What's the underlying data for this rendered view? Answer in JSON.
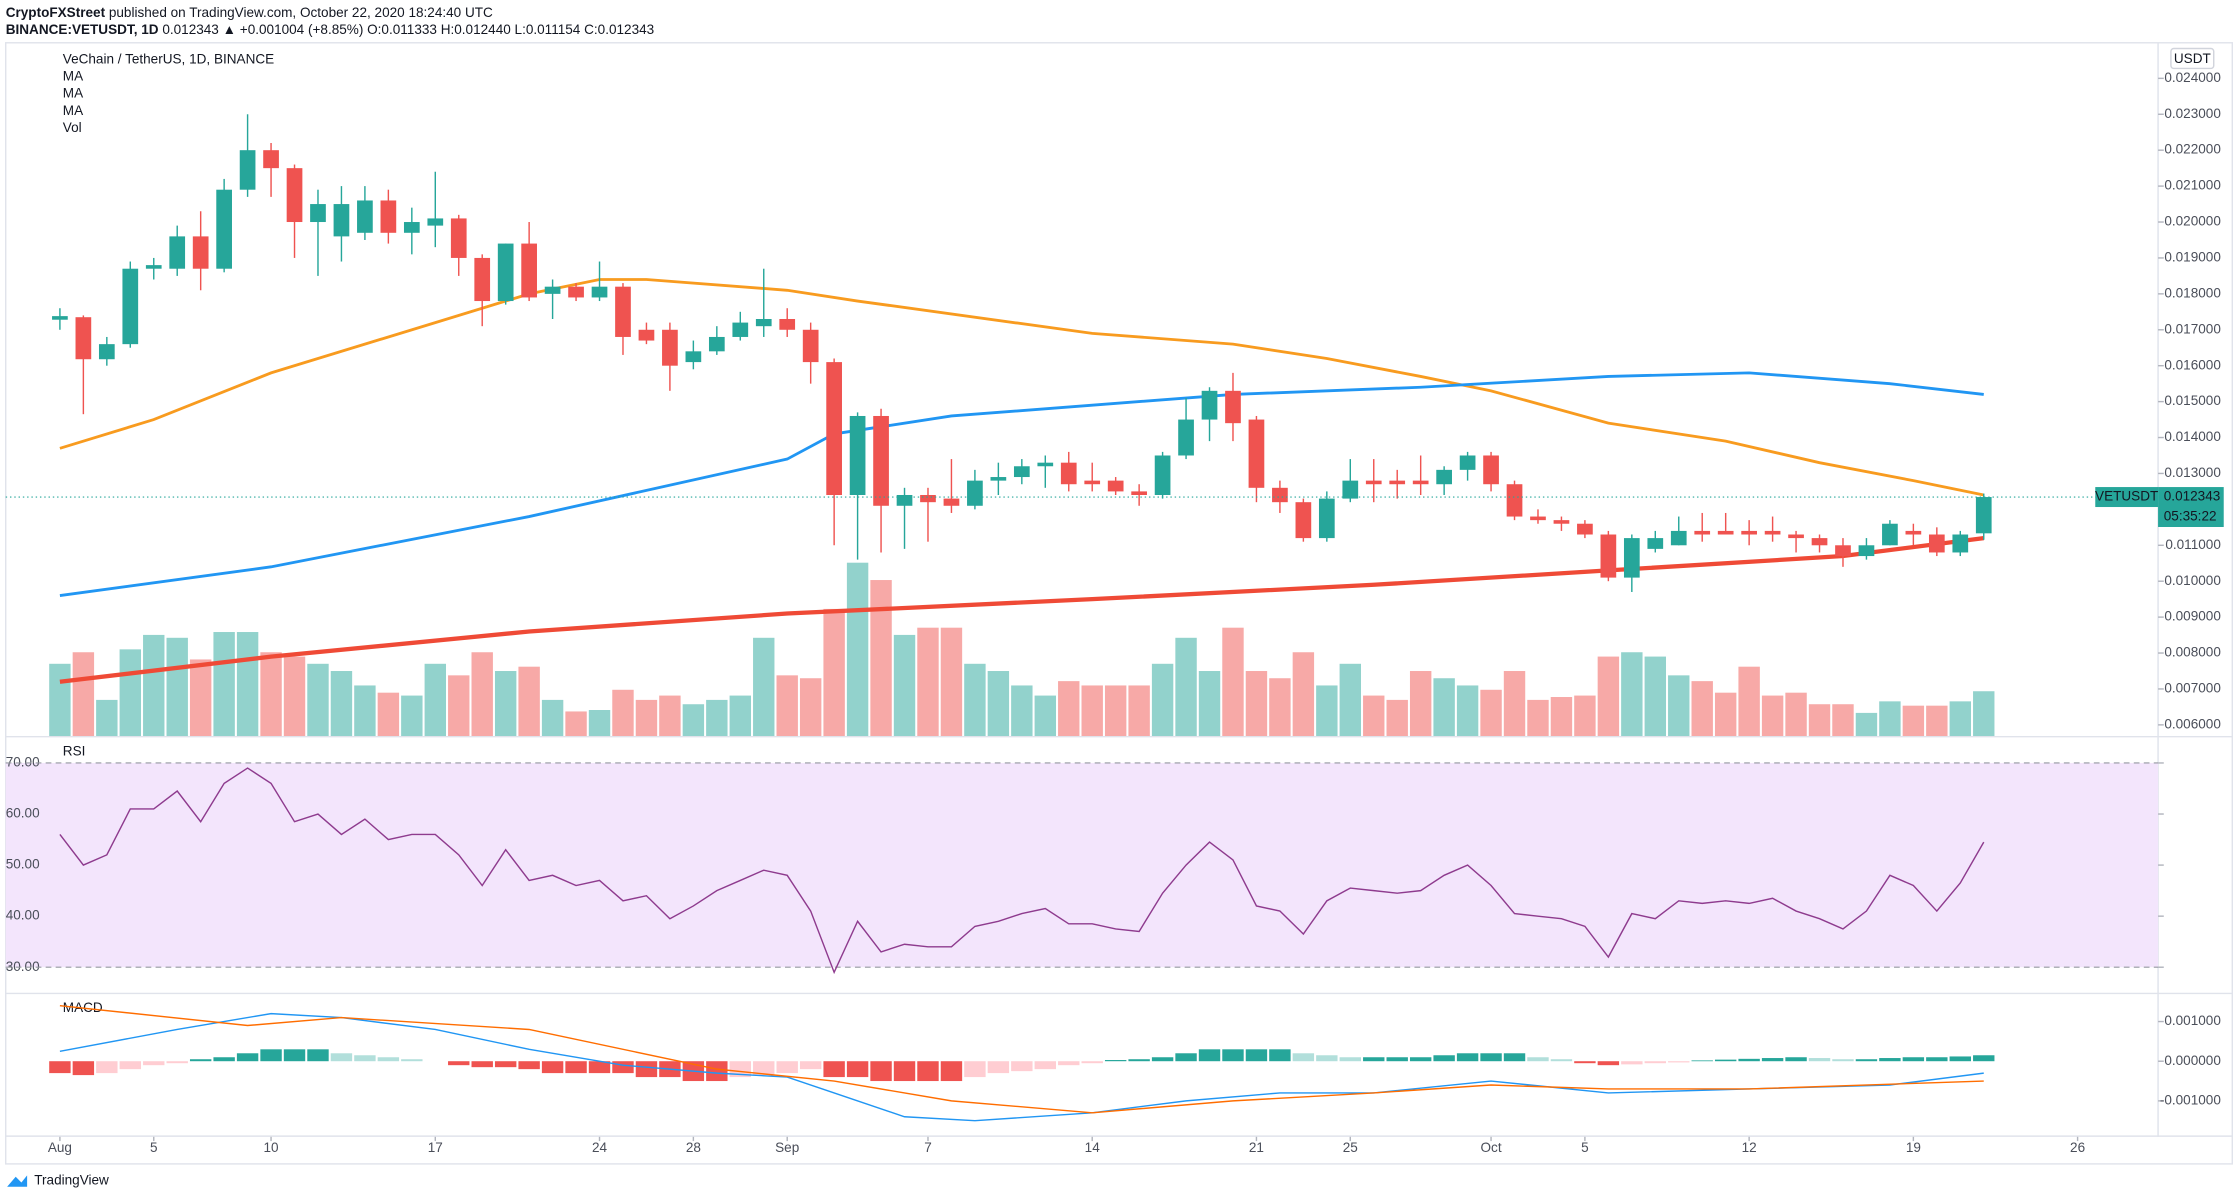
{
  "header": {
    "publisher": "CryptoFXStreet",
    "published": " published on TradingView.com, October 22, 2020 18:24:40 UTC",
    "symbol": "BINANCE:VETUSDT, 1D",
    "quote": " 0.012343 ▲ +0.001004 (+8.85%) O:0.011333 H:0.012440 L:0.011154 C:0.012343",
    "logo": "TradingView"
  },
  "chart_data": [
    {
      "type": "candlestick",
      "title": "VeChain / TetherUS, 1D, BINANCE",
      "axis_unit": "USDT",
      "symbol": "VETUSDT",
      "last_price": 0.012343,
      "countdown": "05:35:22",
      "up_color": "#26a69a",
      "down_color": "#ef5350",
      "volume_name": "Vol",
      "grid": false,
      "open": [
        0.01728,
        0.01735,
        0.01618,
        0.0166,
        0.0187,
        0.0187,
        0.0196,
        0.0187,
        0.0209,
        0.022,
        0.0215,
        0.02,
        0.0196,
        0.0197,
        0.0206,
        0.0197,
        0.0199,
        0.0201,
        0.019,
        0.0178,
        0.0194,
        0.018,
        0.0182,
        0.0179,
        0.0182,
        0.017,
        0.017,
        0.0161,
        0.0164,
        0.0168,
        0.0171,
        0.0173,
        0.017,
        0.0161,
        0.0124,
        0.0146,
        0.0121,
        0.0124,
        0.0123,
        0.0121,
        0.0128,
        0.0129,
        0.0132,
        0.0133,
        0.0128,
        0.0128,
        0.0125,
        0.0124,
        0.0135,
        0.0145,
        0.0153,
        0.0145,
        0.0126,
        0.0122,
        0.0112,
        0.0123,
        0.0128,
        0.0128,
        0.0128,
        0.0127,
        0.0131,
        0.0135,
        0.0127,
        0.0118,
        0.0117,
        0.0116,
        0.0113,
        0.0101,
        0.0109,
        0.011,
        0.0114,
        0.0114,
        0.0114,
        0.0114,
        0.0113,
        0.0112,
        0.011,
        0.0107,
        0.011,
        0.0114,
        0.0113,
        0.0108,
        0.011333
      ],
      "high": [
        0.0176,
        0.0174,
        0.0168,
        0.0189,
        0.019,
        0.0199,
        0.0203,
        0.0212,
        0.023,
        0.0222,
        0.0216,
        0.0209,
        0.021,
        0.021,
        0.0209,
        0.0204,
        0.0214,
        0.0202,
        0.0191,
        0.0194,
        0.02,
        0.0184,
        0.0183,
        0.0189,
        0.0183,
        0.0172,
        0.0172,
        0.0167,
        0.0171,
        0.0175,
        0.0187,
        0.0176,
        0.0172,
        0.0162,
        0.0147,
        0.0148,
        0.0126,
        0.0126,
        0.0134,
        0.0131,
        0.0133,
        0.0134,
        0.0135,
        0.0136,
        0.0133,
        0.0129,
        0.0127,
        0.0136,
        0.0151,
        0.0154,
        0.0158,
        0.0146,
        0.0128,
        0.0123,
        0.0125,
        0.0134,
        0.0134,
        0.0131,
        0.0135,
        0.0132,
        0.0136,
        0.0136,
        0.0128,
        0.012,
        0.0118,
        0.0117,
        0.0114,
        0.0113,
        0.0114,
        0.0118,
        0.0119,
        0.0119,
        0.0117,
        0.0118,
        0.0114,
        0.0113,
        0.0112,
        0.0112,
        0.0117,
        0.0116,
        0.0115,
        0.0114,
        0.01244
      ],
      "low": [
        0.017,
        0.01465,
        0.016,
        0.0165,
        0.0184,
        0.0185,
        0.0181,
        0.0186,
        0.0207,
        0.0207,
        0.019,
        0.0185,
        0.0189,
        0.0195,
        0.0194,
        0.0191,
        0.0193,
        0.0185,
        0.0171,
        0.0177,
        0.0178,
        0.0173,
        0.0178,
        0.0178,
        0.0163,
        0.0166,
        0.0153,
        0.0159,
        0.0163,
        0.0167,
        0.0168,
        0.0168,
        0.0155,
        0.011,
        0.0106,
        0.0108,
        0.0109,
        0.0111,
        0.0119,
        0.012,
        0.0124,
        0.0127,
        0.0126,
        0.0125,
        0.0125,
        0.0124,
        0.0121,
        0.0123,
        0.0134,
        0.0139,
        0.0139,
        0.0122,
        0.0119,
        0.0111,
        0.0111,
        0.0122,
        0.0122,
        0.0123,
        0.0124,
        0.0124,
        0.0128,
        0.0125,
        0.0117,
        0.0116,
        0.0114,
        0.0112,
        0.01,
        0.0097,
        0.0108,
        0.011,
        0.0111,
        0.0113,
        0.011,
        0.0111,
        0.0108,
        0.0108,
        0.0104,
        0.0106,
        0.011,
        0.011,
        0.0107,
        0.0107,
        0.011154
      ],
      "close": [
        0.01738,
        0.01618,
        0.0166,
        0.0187,
        0.0188,
        0.0196,
        0.0187,
        0.0209,
        0.022,
        0.0215,
        0.02,
        0.0205,
        0.0205,
        0.0206,
        0.0197,
        0.02,
        0.0201,
        0.019,
        0.0178,
        0.0194,
        0.0179,
        0.0182,
        0.0179,
        0.0182,
        0.0168,
        0.0167,
        0.016,
        0.0164,
        0.0168,
        0.0172,
        0.0173,
        0.017,
        0.0161,
        0.0124,
        0.0146,
        0.0121,
        0.0124,
        0.0122,
        0.0121,
        0.0128,
        0.0129,
        0.0132,
        0.0133,
        0.0127,
        0.0127,
        0.0125,
        0.0124,
        0.0135,
        0.0145,
        0.0153,
        0.0144,
        0.0126,
        0.0122,
        0.0112,
        0.0123,
        0.0128,
        0.0127,
        0.0127,
        0.0127,
        0.0131,
        0.0135,
        0.0127,
        0.0118,
        0.0117,
        0.0116,
        0.0113,
        0.0101,
        0.0112,
        0.0112,
        0.0114,
        0.0113,
        0.0113,
        0.0113,
        0.0113,
        0.0112,
        0.011,
        0.0107,
        0.011,
        0.0116,
        0.0113,
        0.0108,
        0.0113,
        0.012343
      ],
      "volume": [
        50,
        58,
        25,
        60,
        70,
        68,
        53,
        72,
        72,
        58,
        55,
        50,
        45,
        35,
        30,
        28,
        50,
        42,
        58,
        45,
        48,
        25,
        17,
        18,
        32,
        25,
        28,
        22,
        25,
        28,
        68,
        42,
        40,
        88,
        120,
        108,
        70,
        75,
        75,
        50,
        45,
        35,
        28,
        38,
        35,
        35,
        35,
        50,
        68,
        45,
        75,
        45,
        40,
        58,
        35,
        50,
        28,
        25,
        45,
        40,
        35,
        32,
        45,
        25,
        27,
        28,
        55,
        58,
        55,
        42,
        38,
        30,
        48,
        28,
        30,
        22,
        22,
        16,
        24,
        21,
        21,
        24,
        31
      ],
      "series": [
        {
          "name": "MA",
          "color": "#f89b1f",
          "width": 2,
          "x": [
            0,
            4,
            9,
            16,
            20,
            23,
            25,
            31,
            34,
            44,
            50,
            54,
            58,
            61,
            66,
            71,
            75,
            79,
            82
          ],
          "values": [
            0.0137,
            0.0145,
            0.0158,
            0.0172,
            0.018,
            0.0184,
            0.0184,
            0.0181,
            0.0178,
            0.0169,
            0.0166,
            0.0162,
            0.0157,
            0.0153,
            0.0144,
            0.0139,
            0.0133,
            0.0128,
            0.0124
          ]
        },
        {
          "name": "MA",
          "color": "#2196f3",
          "width": 2,
          "x": [
            0,
            9,
            20,
            31,
            33,
            38,
            44,
            50,
            58,
            66,
            72,
            78,
            82
          ],
          "values": [
            0.0096,
            0.0104,
            0.0118,
            0.0134,
            0.0141,
            0.0146,
            0.0149,
            0.0152,
            0.0154,
            0.0157,
            0.0158,
            0.0155,
            0.0152
          ]
        },
        {
          "name": "MA",
          "color": "#ef4a36",
          "width": 3,
          "x": [
            0,
            9,
            20,
            31,
            44,
            56,
            66,
            76,
            82
          ],
          "values": [
            0.0072,
            0.0079,
            0.0086,
            0.0091,
            0.0095,
            0.0099,
            0.0103,
            0.0107,
            0.0112
          ]
        }
      ],
      "xlim": [
        -2.31,
        89.43
      ],
      "xticks": [
        {
          "value": 0,
          "label": "Aug"
        },
        {
          "value": 4,
          "label": "5"
        },
        {
          "value": 9,
          "label": "10"
        },
        {
          "value": 16,
          "label": "17"
        },
        {
          "value": 23,
          "label": "24"
        },
        {
          "value": 27,
          "label": "28"
        },
        {
          "value": 31,
          "label": "Sep"
        },
        {
          "value": 37,
          "label": "7"
        },
        {
          "value": 44,
          "label": "14"
        },
        {
          "value": 51,
          "label": "21"
        },
        {
          "value": 55,
          "label": "25"
        },
        {
          "value": 61,
          "label": "Oct"
        },
        {
          "value": 65,
          "label": "5"
        },
        {
          "value": 72,
          "label": "12"
        },
        {
          "value": 79,
          "label": "19"
        },
        {
          "value": 86,
          "label": "26"
        }
      ],
      "ylim": [
        0.00569,
        0.02499
      ],
      "yticks": [
        {
          "value": 0.006,
          "label": "0.006000"
        },
        {
          "value": 0.007,
          "label": "0.007000"
        },
        {
          "value": 0.008,
          "label": "0.008000"
        },
        {
          "value": 0.009,
          "label": "0.009000"
        },
        {
          "value": 0.01,
          "label": "0.010000"
        },
        {
          "value": 0.011,
          "label": "0.011000"
        },
        {
          "value": 0.012,
          "label": "0.012000"
        },
        {
          "value": 0.013,
          "label": "0.013000"
        },
        {
          "value": 0.014,
          "label": "0.014000"
        },
        {
          "value": 0.015,
          "label": "0.015000"
        },
        {
          "value": 0.016,
          "label": "0.016000"
        },
        {
          "value": 0.017,
          "label": "0.017000"
        },
        {
          "value": 0.018,
          "label": "0.018000"
        },
        {
          "value": 0.019,
          "label": "0.019000"
        },
        {
          "value": 0.02,
          "label": "0.020000"
        },
        {
          "value": 0.021,
          "label": "0.021000"
        },
        {
          "value": 0.022,
          "label": "0.022000"
        },
        {
          "value": 0.023,
          "label": "0.023000"
        },
        {
          "value": 0.024,
          "label": "0.024000"
        }
      ]
    },
    {
      "type": "line",
      "title": "RSI",
      "color": "#8e3b8e",
      "band_color": "#f3e5fc",
      "values": [
        56,
        50,
        52,
        61,
        61,
        64.5,
        58.5,
        66,
        69,
        66,
        58.5,
        60,
        56,
        59,
        55,
        56,
        56,
        52,
        46,
        53,
        47,
        48,
        46,
        47,
        43,
        44,
        39.5,
        42,
        45,
        47,
        49,
        48,
        41,
        29,
        39,
        33,
        34.5,
        34,
        34,
        38,
        39,
        40.5,
        41.5,
        38.5,
        38.5,
        37.5,
        37,
        44.5,
        50,
        54.5,
        51,
        42,
        41,
        36.5,
        43,
        45.5,
        45,
        44.5,
        45,
        48,
        50,
        46,
        40.5,
        40,
        39.5,
        38,
        32,
        40.5,
        39.5,
        43,
        42.5,
        43,
        42.5,
        43.5,
        41,
        39.5,
        37.5,
        41,
        48,
        46,
        41,
        46.5,
        54.5
      ],
      "ylim": [
        25,
        75
      ],
      "yticks": [
        {
          "value": 30,
          "label": "30.00"
        },
        {
          "value": 40,
          "label": "40.00"
        },
        {
          "value": 50,
          "label": "50.00"
        },
        {
          "value": 60,
          "label": "60.00"
        },
        {
          "value": 70,
          "label": "70.00"
        }
      ]
    },
    {
      "type": "bar",
      "title": "MACD",
      "colors": [
        "#26a69a",
        "#b2dfdb",
        "#ffcdd2",
        "#ef5350"
      ],
      "values": [
        -0.0003,
        -0.00035,
        -0.0003,
        -0.0002,
        -0.0001,
        -5e-05,
        5e-05,
        0.0001,
        0.0002,
        0.0003,
        0.0003,
        0.0003,
        0.0002,
        0.00015,
        0.0001,
        5e-05,
        0,
        -0.0001,
        -0.00015,
        -0.00015,
        -0.0002,
        -0.0003,
        -0.0003,
        -0.0003,
        -0.0003,
        -0.0004,
        -0.0004,
        -0.0005,
        -0.0005,
        -0.0004,
        -0.00035,
        -0.0003,
        -0.0002,
        -0.0004,
        -0.0004,
        -0.0005,
        -0.0005,
        -0.0005,
        -0.0005,
        -0.0004,
        -0.0003,
        -0.00025,
        -0.0002,
        -0.0001,
        -5e-05,
        3e-05,
        5e-05,
        0.0001,
        0.0002,
        0.0003,
        0.0003,
        0.0003,
        0.0003,
        0.0002,
        0.00015,
        0.0001,
        0.0001,
        0.0001,
        0.0001,
        0.00015,
        0.0002,
        0.0002,
        0.0002,
        0.0001,
        5e-05,
        -5e-05,
        -0.0001,
        -8e-05,
        -5e-05,
        -3e-05,
        2e-05,
        4e-05,
        6e-05,
        8e-05,
        0.0001,
        8e-05,
        5e-05,
        5e-05,
        8e-05,
        0.0001,
        0.0001,
        0.00012,
        0.00015
      ],
      "series": [
        {
          "color": "#2196f3",
          "x": [
            0,
            5,
            9,
            12,
            16,
            20,
            24,
            28,
            31,
            33,
            36,
            39,
            44,
            48,
            52,
            56,
            61,
            66,
            72,
            78,
            82
          ],
          "values": [
            0.00025,
            0.0008,
            0.0012,
            0.0011,
            0.0008,
            0.0003,
            -0.0001,
            -0.0003,
            -0.0004,
            -0.0008,
            -0.0014,
            -0.0015,
            -0.0013,
            -0.001,
            -0.0008,
            -0.0008,
            -0.0005,
            -0.0008,
            -0.0007,
            -0.0006,
            -0.0003
          ]
        },
        {
          "color": "#ff6d00",
          "x": [
            0,
            8,
            12,
            20,
            28,
            33,
            38,
            44,
            50,
            56,
            61,
            66,
            72,
            82
          ],
          "values": [
            0.0014,
            0.0009,
            0.0011,
            0.0008,
            -0.0002,
            -0.0005,
            -0.001,
            -0.0013,
            -0.001,
            -0.0008,
            -0.0006,
            -0.0007,
            -0.0007,
            -0.0005
          ]
        }
      ],
      "ylim": [
        -0.00187,
        0.00169
      ],
      "yticks": [
        {
          "value": -0.001,
          "label": "-0.001000"
        },
        {
          "value": 0,
          "label": "0.000000"
        },
        {
          "value": 0.001,
          "label": "0.001000"
        }
      ]
    }
  ]
}
